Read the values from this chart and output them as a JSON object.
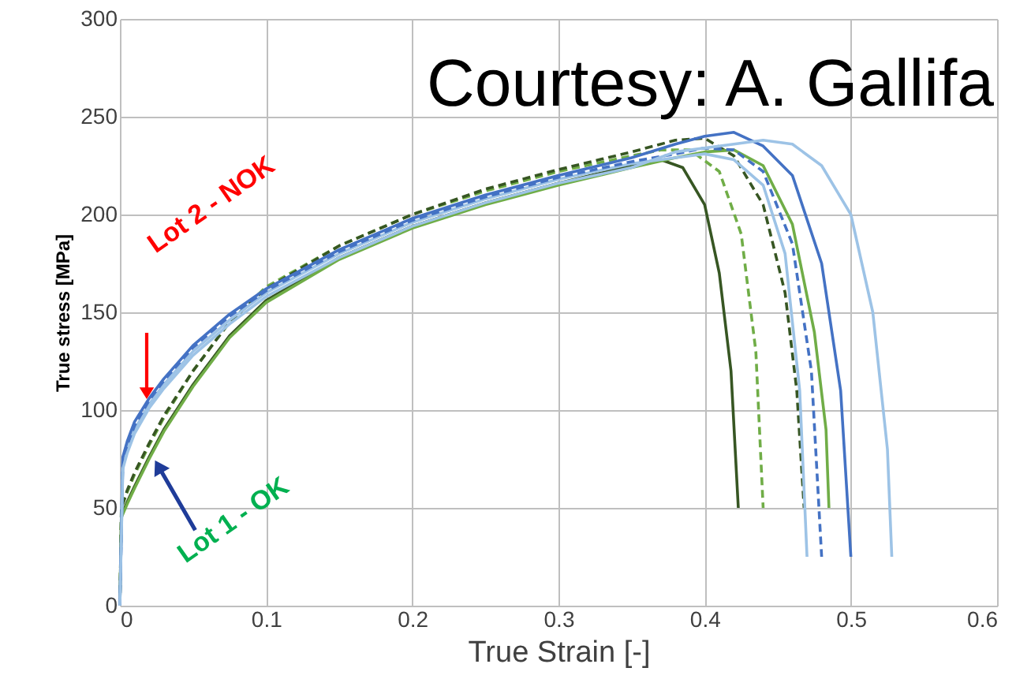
{
  "chart_data": {
    "type": "line",
    "xlabel": "True Strain [-]",
    "ylabel": "True stress [MPa]",
    "xlim": [
      0,
      0.6
    ],
    "ylim": [
      0,
      300
    ],
    "xticks": [
      0,
      0.1,
      0.2,
      0.3,
      0.4,
      0.5,
      0.6
    ],
    "yticks": [
      0,
      50,
      100,
      150,
      200,
      250,
      300
    ],
    "grid": true,
    "marker": "none",
    "annotations": [
      "Courtesy: A. Gallifa",
      "Lot 2 - NOK",
      "Lot 1 - OK"
    ],
    "series": [
      {
        "color": "#375623",
        "line_style": "solid",
        "x": [
          0,
          0.001,
          0.005,
          0.01,
          0.02,
          0.03,
          0.05,
          0.075,
          0.1,
          0.15,
          0.2,
          0.25,
          0.3,
          0.35,
          0.37,
          0.385,
          0.4,
          0.41,
          0.418,
          0.423
        ],
        "values": [
          0,
          46,
          53,
          61,
          76,
          90,
          113,
          138,
          156,
          178,
          194,
          206,
          216,
          225,
          228,
          224,
          205,
          170,
          120,
          50
        ]
      },
      {
        "color": "#70ad47",
        "line_style": "dashed",
        "x": [
          0,
          0.001,
          0.005,
          0.01,
          0.02,
          0.03,
          0.05,
          0.075,
          0.1,
          0.15,
          0.2,
          0.25,
          0.3,
          0.35,
          0.37,
          0.39,
          0.41,
          0.425,
          0.435,
          0.44
        ],
        "values": [
          0,
          50,
          58,
          67,
          82,
          96,
          120,
          145,
          163,
          184,
          200,
          212,
          222,
          230,
          233,
          233,
          222,
          190,
          130,
          50
        ]
      },
      {
        "color": "#375623",
        "line_style": "dashed",
        "x": [
          0,
          0.001,
          0.005,
          0.01,
          0.02,
          0.03,
          0.05,
          0.075,
          0.1,
          0.15,
          0.2,
          0.25,
          0.3,
          0.35,
          0.38,
          0.4,
          0.42,
          0.44,
          0.455,
          0.463,
          0.468
        ],
        "values": [
          0,
          50,
          59,
          68,
          83,
          97,
          120,
          145,
          162,
          184,
          200,
          213,
          223,
          232,
          238,
          239,
          230,
          205,
          160,
          110,
          50
        ]
      },
      {
        "color": "#70ad47",
        "line_style": "solid",
        "x": [
          0,
          0.001,
          0.005,
          0.01,
          0.02,
          0.03,
          0.05,
          0.075,
          0.1,
          0.15,
          0.2,
          0.25,
          0.3,
          0.35,
          0.38,
          0.4,
          0.42,
          0.44,
          0.46,
          0.475,
          0.483,
          0.485
        ],
        "values": [
          0,
          45,
          52,
          60,
          75,
          89,
          112,
          137,
          155,
          177,
          193,
          205,
          215,
          224,
          229,
          232,
          233,
          225,
          195,
          140,
          90,
          50
        ]
      },
      {
        "color": "#9dc3e6",
        "line_style": "solid",
        "x": [
          0,
          0.002,
          0.005,
          0.01,
          0.02,
          0.03,
          0.05,
          0.075,
          0.1,
          0.15,
          0.2,
          0.25,
          0.3,
          0.35,
          0.38,
          0.4,
          0.42,
          0.44,
          0.455,
          0.465,
          0.47
        ],
        "values": [
          0,
          72,
          80,
          90,
          103,
          113,
          130,
          146,
          160,
          180,
          196,
          208,
          218,
          226,
          229,
          231,
          228,
          215,
          180,
          110,
          25
        ]
      },
      {
        "color": "#4472c4",
        "line_style": "dashed",
        "x": [
          0,
          0.002,
          0.005,
          0.01,
          0.02,
          0.03,
          0.05,
          0.075,
          0.1,
          0.15,
          0.2,
          0.25,
          0.3,
          0.35,
          0.38,
          0.4,
          0.42,
          0.44,
          0.46,
          0.473,
          0.48
        ],
        "values": [
          0,
          74,
          82,
          92,
          105,
          115,
          132,
          148,
          161,
          181,
          197,
          209,
          219,
          227,
          231,
          234,
          233,
          222,
          185,
          120,
          25
        ]
      },
      {
        "color": "#4472c4",
        "line_style": "solid",
        "x": [
          0,
          0.002,
          0.005,
          0.01,
          0.02,
          0.03,
          0.05,
          0.075,
          0.1,
          0.15,
          0.2,
          0.25,
          0.3,
          0.35,
          0.38,
          0.4,
          0.42,
          0.44,
          0.46,
          0.48,
          0.493,
          0.5
        ],
        "values": [
          0,
          76,
          84,
          94,
          106,
          116,
          133,
          149,
          162,
          182,
          198,
          210,
          220,
          229,
          236,
          240,
          242,
          235,
          220,
          175,
          110,
          25
        ]
      },
      {
        "color": "#9dc3e6",
        "line_style": "solid",
        "x": [
          0,
          0.002,
          0.005,
          0.01,
          0.02,
          0.03,
          0.05,
          0.075,
          0.1,
          0.15,
          0.2,
          0.25,
          0.3,
          0.35,
          0.38,
          0.42,
          0.44,
          0.46,
          0.48,
          0.5,
          0.515,
          0.525,
          0.528
        ],
        "values": [
          0,
          70,
          78,
          88,
          101,
          111,
          128,
          144,
          158,
          178,
          194,
          206,
          216,
          224,
          232,
          236,
          238,
          236,
          225,
          200,
          150,
          80,
          25
        ]
      }
    ]
  }
}
